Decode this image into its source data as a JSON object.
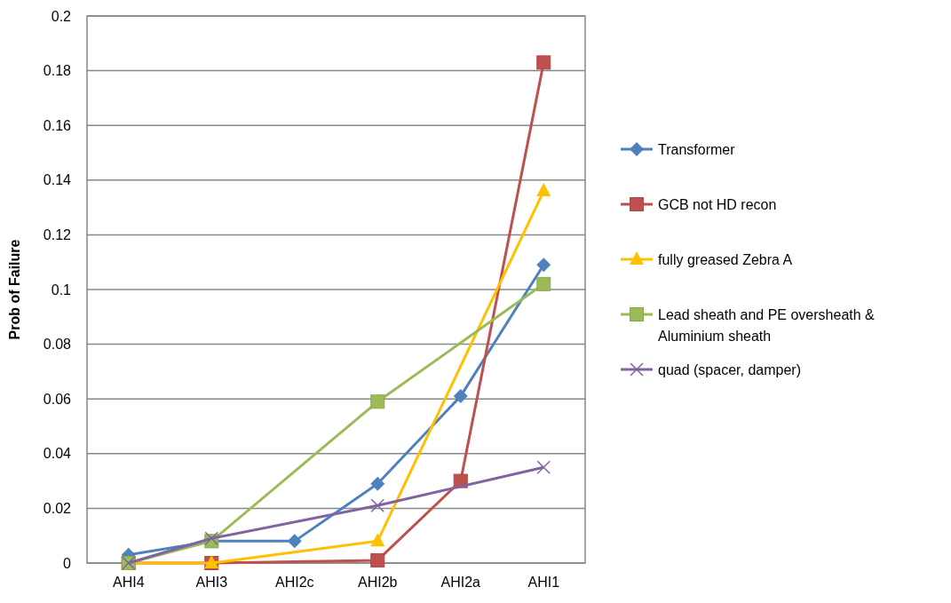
{
  "chart_data": {
    "type": "line",
    "ylabel": "Prob of Failure",
    "categories": [
      "AHI4",
      "AHI3",
      "AHI2c",
      "AHI2b",
      "AHI2a",
      "AHI1"
    ],
    "series": [
      {
        "name": "Transformer",
        "color": "#4f81bd",
        "marker": "diamond",
        "values": [
          0.003,
          0.008,
          0.008,
          0.029,
          0.061,
          0.109
        ]
      },
      {
        "name": "GCB not HD recon",
        "color": "#c0504d",
        "marker": "square",
        "values": [
          0,
          0,
          null,
          0.001,
          0.03,
          0.183
        ]
      },
      {
        "name": "fully greased Zebra A",
        "color": "#ffc000",
        "marker": "triangle",
        "values": [
          0,
          0,
          null,
          0.008,
          null,
          0.136
        ]
      },
      {
        "name": "Lead sheath and PE oversheath & Aluminium sheath",
        "color": "#9bbb59",
        "marker": "square",
        "values": [
          0,
          0.008,
          null,
          0.059,
          null,
          0.102
        ]
      },
      {
        "name": "quad (spacer, damper)",
        "color": "#8064a2",
        "marker": "cross",
        "values": [
          0,
          0.009,
          null,
          0.021,
          null,
          0.035
        ]
      }
    ],
    "ylim": [
      0,
      0.2
    ],
    "yticks": [
      0,
      0.02,
      0.04,
      0.06,
      0.08,
      0.1,
      0.12,
      0.14,
      0.16,
      0.18,
      0.2
    ],
    "grid": "y",
    "legend": "right"
  }
}
